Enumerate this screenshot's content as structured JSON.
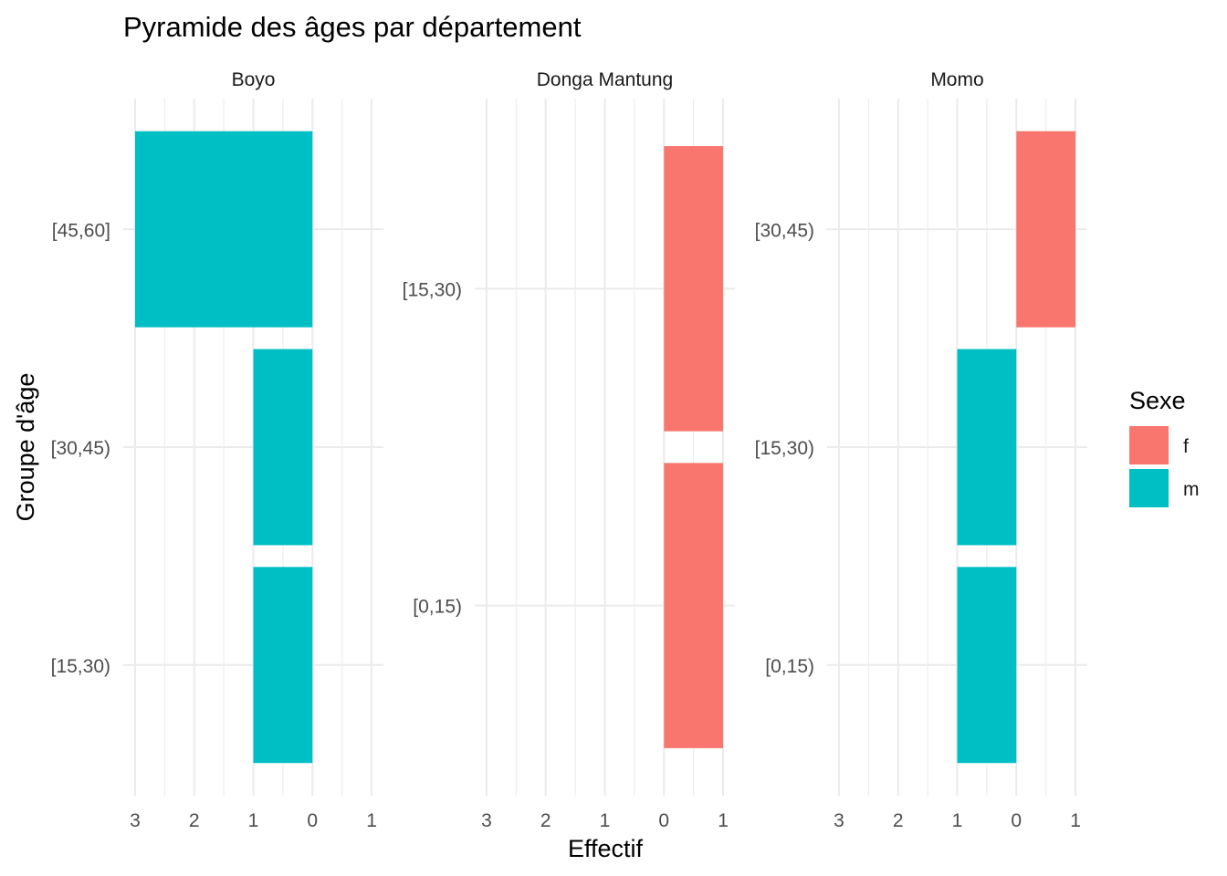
{
  "chart_data": {
    "type": "bar",
    "orientation": "horizontal",
    "title": "Pyramide des âges par département",
    "xlabel": "Effectif",
    "ylabel": "Groupe d'âge",
    "x_range": [
      -3,
      1
    ],
    "x_tick_values": [
      -3,
      -2,
      -1,
      0,
      1
    ],
    "x_tick_labels": [
      "3",
      "2",
      "1",
      "0",
      "1"
    ],
    "legend": {
      "title": "Sexe",
      "position": "right",
      "entries": [
        {
          "label": "f",
          "color": "#F8766D"
        },
        {
          "label": "m",
          "color": "#00BFC4"
        }
      ]
    },
    "grid": true,
    "facets": [
      {
        "name": "Boyo",
        "categories": [
          "[15,30)",
          "[30,45)",
          "[45,60]"
        ],
        "bars": [
          {
            "category": "[15,30)",
            "sexe": "m",
            "value": -1
          },
          {
            "category": "[30,45)",
            "sexe": "m",
            "value": -1
          },
          {
            "category": "[45,60]",
            "sexe": "m",
            "value": -3
          }
        ]
      },
      {
        "name": "Donga Mantung",
        "categories": [
          "[0,15)",
          "[15,30)"
        ],
        "bars": [
          {
            "category": "[0,15)",
            "sexe": "f",
            "value": 1
          },
          {
            "category": "[15,30)",
            "sexe": "f",
            "value": 1
          }
        ]
      },
      {
        "name": "Momo",
        "categories": [
          "[0,15)",
          "[15,30)",
          "[30,45)"
        ],
        "bars": [
          {
            "category": "[0,15)",
            "sexe": "m",
            "value": -1
          },
          {
            "category": "[15,30)",
            "sexe": "m",
            "value": -1
          },
          {
            "category": "[30,45)",
            "sexe": "f",
            "value": 1
          }
        ]
      }
    ]
  }
}
